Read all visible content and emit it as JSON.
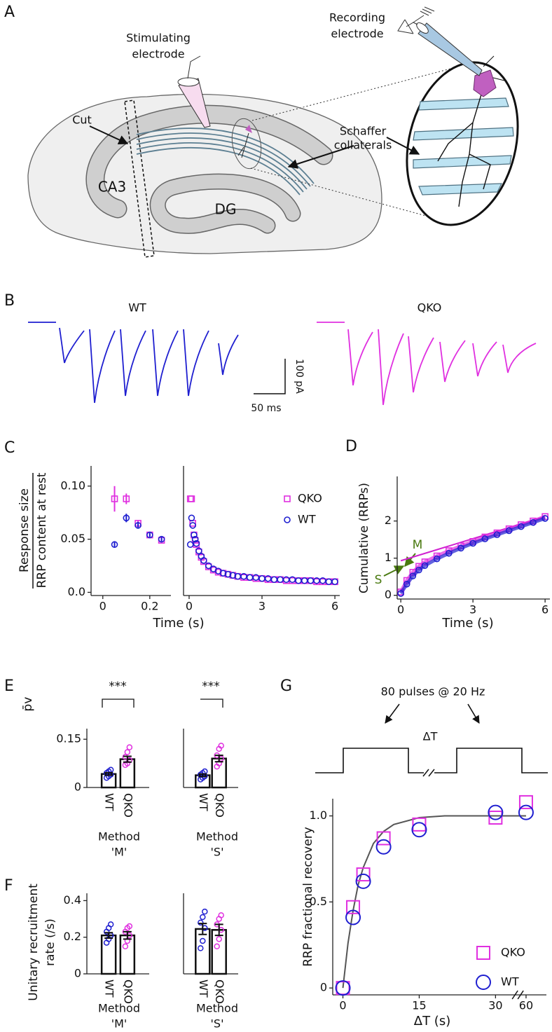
{
  "panel_labels": [
    "A",
    "B",
    "C",
    "D",
    "E",
    "F",
    "G"
  ],
  "diagram": {
    "stimulating_electrode": [
      "Stimulating",
      "electrode"
    ],
    "recording_electrode": [
      "Recording",
      "electrode"
    ],
    "cut": "Cut",
    "schaffer_collaterals": [
      "Schaffer",
      "collaterals"
    ],
    "ca3": "CA3",
    "dg": "DG"
  },
  "traces": {
    "wt": "WT",
    "qko": "QKO",
    "scale_y": "100 pA",
    "scale_x": "50 ms"
  },
  "protocol": {
    "pulses": "80 pulses @ 20 Hz",
    "interval": "ΔT"
  },
  "chart_data": [
    {
      "type": "scatter",
      "ylabel": [
        "Response size",
        "RRP content at rest"
      ],
      "xlabel": "Time (s)",
      "x": [
        0.05,
        0.1,
        0.15,
        0.2,
        0.25
      ],
      "xlim": [
        -0.05,
        0.29
      ],
      "xticks": [
        0,
        0.2
      ],
      "ylim": [
        -0.003,
        0.119
      ],
      "yticks": [
        {
          "value": 0,
          "label": "0.0"
        },
        0.05,
        {
          "value": 0.1,
          "label": "0.10"
        }
      ],
      "series": [
        {
          "name": "QKO",
          "color": "#e030e0",
          "marker": "square",
          "values": [
            0.088,
            0.088,
            0.065,
            0.054,
            0.049
          ],
          "errors": [
            0.012,
            0.005,
            0.003,
            0.002,
            0.002
          ]
        },
        {
          "name": "WT",
          "color": "#1f1fd0",
          "marker": "circle",
          "values": [
            0.045,
            0.07,
            0.063,
            0.054,
            0.05
          ],
          "errors": [
            0.003,
            0.004,
            0.003,
            0.002,
            0.002
          ]
        }
      ]
    },
    {
      "type": "scatter",
      "legend": "upper right",
      "x": [
        0.05,
        0.1,
        0.15,
        0.2,
        0.25,
        0.3,
        0.4,
        0.5,
        0.6,
        0.8,
        1.0,
        1.2,
        1.4,
        1.6,
        1.8,
        2.0,
        2.25,
        2.5,
        2.75,
        3.0,
        3.25,
        3.5,
        3.75,
        4.0,
        4.25,
        4.5,
        4.75,
        5.0,
        5.25,
        5.5,
        5.75,
        6.0
      ],
      "xlim": [
        -0.23,
        6.2
      ],
      "xticks": [
        0,
        3,
        6
      ],
      "ylim": [
        -0.003,
        0.119
      ],
      "series": [
        {
          "name": "QKO",
          "color": "#e030e0",
          "marker": "square",
          "values": [
            0.088,
            0.088,
            0.065,
            0.054,
            0.049,
            0.045,
            0.038,
            0.033,
            0.029,
            0.024,
            0.021,
            0.019,
            0.018,
            0.017,
            0.016,
            0.015,
            0.014,
            0.014,
            0.013,
            0.013,
            0.012,
            0.012,
            0.012,
            0.011,
            0.011,
            0.011,
            0.011,
            0.011,
            0.01,
            0.01,
            0.01,
            0.01
          ]
        },
        {
          "name": "WT",
          "color": "#1f1fd0",
          "marker": "circle",
          "values": [
            0.045,
            0.07,
            0.063,
            0.054,
            0.05,
            0.046,
            0.039,
            0.034,
            0.03,
            0.025,
            0.022,
            0.02,
            0.018,
            0.017,
            0.016,
            0.015,
            0.015,
            0.014,
            0.014,
            0.013,
            0.013,
            0.012,
            0.012,
            0.012,
            0.012,
            0.011,
            0.011,
            0.011,
            0.011,
            0.011,
            0.01,
            0.01
          ]
        }
      ]
    },
    {
      "type": "line",
      "ylabel": "Cumulative (RRPs)",
      "xlabel": "Time (s)",
      "x": [
        0,
        0.25,
        0.5,
        0.75,
        1,
        1.5,
        2,
        2.5,
        3,
        3.5,
        4,
        4.5,
        5,
        5.5,
        6
      ],
      "xlim": [
        -0.15,
        6.2
      ],
      "xticks": [
        0,
        3,
        6
      ],
      "ylim": [
        -0.1,
        3.2
      ],
      "yticks": [
        0,
        1,
        2
      ],
      "annotations": [
        "M",
        "S"
      ],
      "annotation_color": "#4a7a10",
      "fit": {
        "x": [
          0,
          6
        ],
        "values": [
          0.93,
          2.12
        ],
        "color": "#d020d0"
      },
      "series": [
        {
          "name": "QKO",
          "color": "#e030e0",
          "marker": "square",
          "values": [
            0.09,
            0.4,
            0.62,
            0.78,
            0.9,
            1.06,
            1.2,
            1.33,
            1.45,
            1.57,
            1.68,
            1.79,
            1.9,
            2.0,
            2.12
          ]
        },
        {
          "name": "WT",
          "color": "#1f1fd0",
          "marker": "circle",
          "values": [
            0.05,
            0.3,
            0.52,
            0.68,
            0.8,
            0.98,
            1.13,
            1.27,
            1.4,
            1.52,
            1.63,
            1.74,
            1.85,
            1.96,
            2.07
          ]
        }
      ]
    },
    {
      "type": "bar",
      "ylabel": "p̄v",
      "title": [
        "Method",
        "'M'"
      ],
      "annotations": [
        "***"
      ],
      "categories": [
        "WT",
        "QKO"
      ],
      "colors": [
        "#1f1fd0",
        "#e030e0"
      ],
      "values": [
        0.042,
        0.088
      ],
      "errors": [
        0.004,
        0.009
      ],
      "points": [
        [
          0.03,
          0.035,
          0.04,
          0.045,
          0.05,
          0.055
        ],
        [
          0.07,
          0.075,
          0.085,
          0.095,
          0.11,
          0.125
        ]
      ],
      "ylim": [
        0,
        0.183
      ],
      "yticks": [
        0,
        0.15
      ]
    },
    {
      "type": "bar",
      "title": [
        "Method",
        "'S'"
      ],
      "annotations": [
        "***"
      ],
      "categories": [
        "WT",
        "QKO"
      ],
      "colors": [
        "#1f1fd0",
        "#e030e0"
      ],
      "values": [
        0.038,
        0.09
      ],
      "errors": [
        0.004,
        0.01
      ],
      "points": [
        [
          0.025,
          0.03,
          0.035,
          0.04,
          0.045,
          0.05
        ],
        [
          0.065,
          0.075,
          0.09,
          0.1,
          0.12,
          0.13
        ]
      ],
      "ylim": [
        0,
        0.183
      ]
    },
    {
      "type": "bar",
      "ylabel": [
        "Unitary recruitment",
        "rate (/s)"
      ],
      "title": [
        "Method",
        "'M'"
      ],
      "categories": [
        "WT",
        "QKO"
      ],
      "colors": [
        "#1f1fd0",
        "#e030e0"
      ],
      "values": [
        0.21,
        0.21
      ],
      "errors": [
        0.015,
        0.02
      ],
      "points": [
        [
          0.17,
          0.19,
          0.21,
          0.23,
          0.25,
          0.27
        ],
        [
          0.15,
          0.18,
          0.21,
          0.23,
          0.25,
          0.26
        ]
      ],
      "ylim": [
        0,
        0.44
      ],
      "yticks": [
        0,
        0.2,
        0.4
      ]
    },
    {
      "type": "bar",
      "title": [
        "Method",
        "'S'"
      ],
      "categories": [
        "WT",
        "QKO"
      ],
      "colors": [
        "#1f1fd0",
        "#e030e0"
      ],
      "values": [
        0.245,
        0.24
      ],
      "errors": [
        0.03,
        0.03
      ],
      "points": [
        [
          0.14,
          0.18,
          0.25,
          0.28,
          0.31,
          0.34
        ],
        [
          0.15,
          0.19,
          0.24,
          0.27,
          0.3,
          0.32
        ]
      ],
      "ylim": [
        0,
        0.44
      ]
    },
    {
      "type": "scatter",
      "ylabel": "RRP fractional recovery",
      "xlabel": "ΔT (s)",
      "legend": "lower right",
      "x": [
        0,
        2,
        4,
        8,
        15,
        30,
        60
      ],
      "xlim": [
        -2,
        64
      ],
      "xbreak": [
        33,
        57
      ],
      "xticks": [
        0,
        15,
        30,
        60
      ],
      "ylim": [
        -0.04,
        1.1
      ],
      "yticks": [
        0,
        0.5,
        {
          "value": 1,
          "label": "1.0"
        }
      ],
      "fit": {
        "x": [
          0,
          1,
          2,
          3,
          4,
          6,
          8,
          10,
          15,
          20,
          30,
          60
        ],
        "values": [
          0,
          0.26,
          0.45,
          0.6,
          0.7,
          0.84,
          0.91,
          0.95,
          0.99,
          1.0,
          1.0,
          1.0
        ],
        "color": "#555555"
      },
      "series": [
        {
          "name": "QKO",
          "color": "#e030e0",
          "marker": "square",
          "marker_size": 9,
          "values": [
            0,
            0.47,
            0.66,
            0.87,
            0.95,
            0.99,
            1.08
          ]
        },
        {
          "name": "WT",
          "color": "#1f1fd0",
          "marker": "circle",
          "marker_size": 10,
          "values": [
            0,
            0.41,
            0.62,
            0.82,
            0.92,
            1.02,
            1.02
          ]
        }
      ]
    }
  ]
}
